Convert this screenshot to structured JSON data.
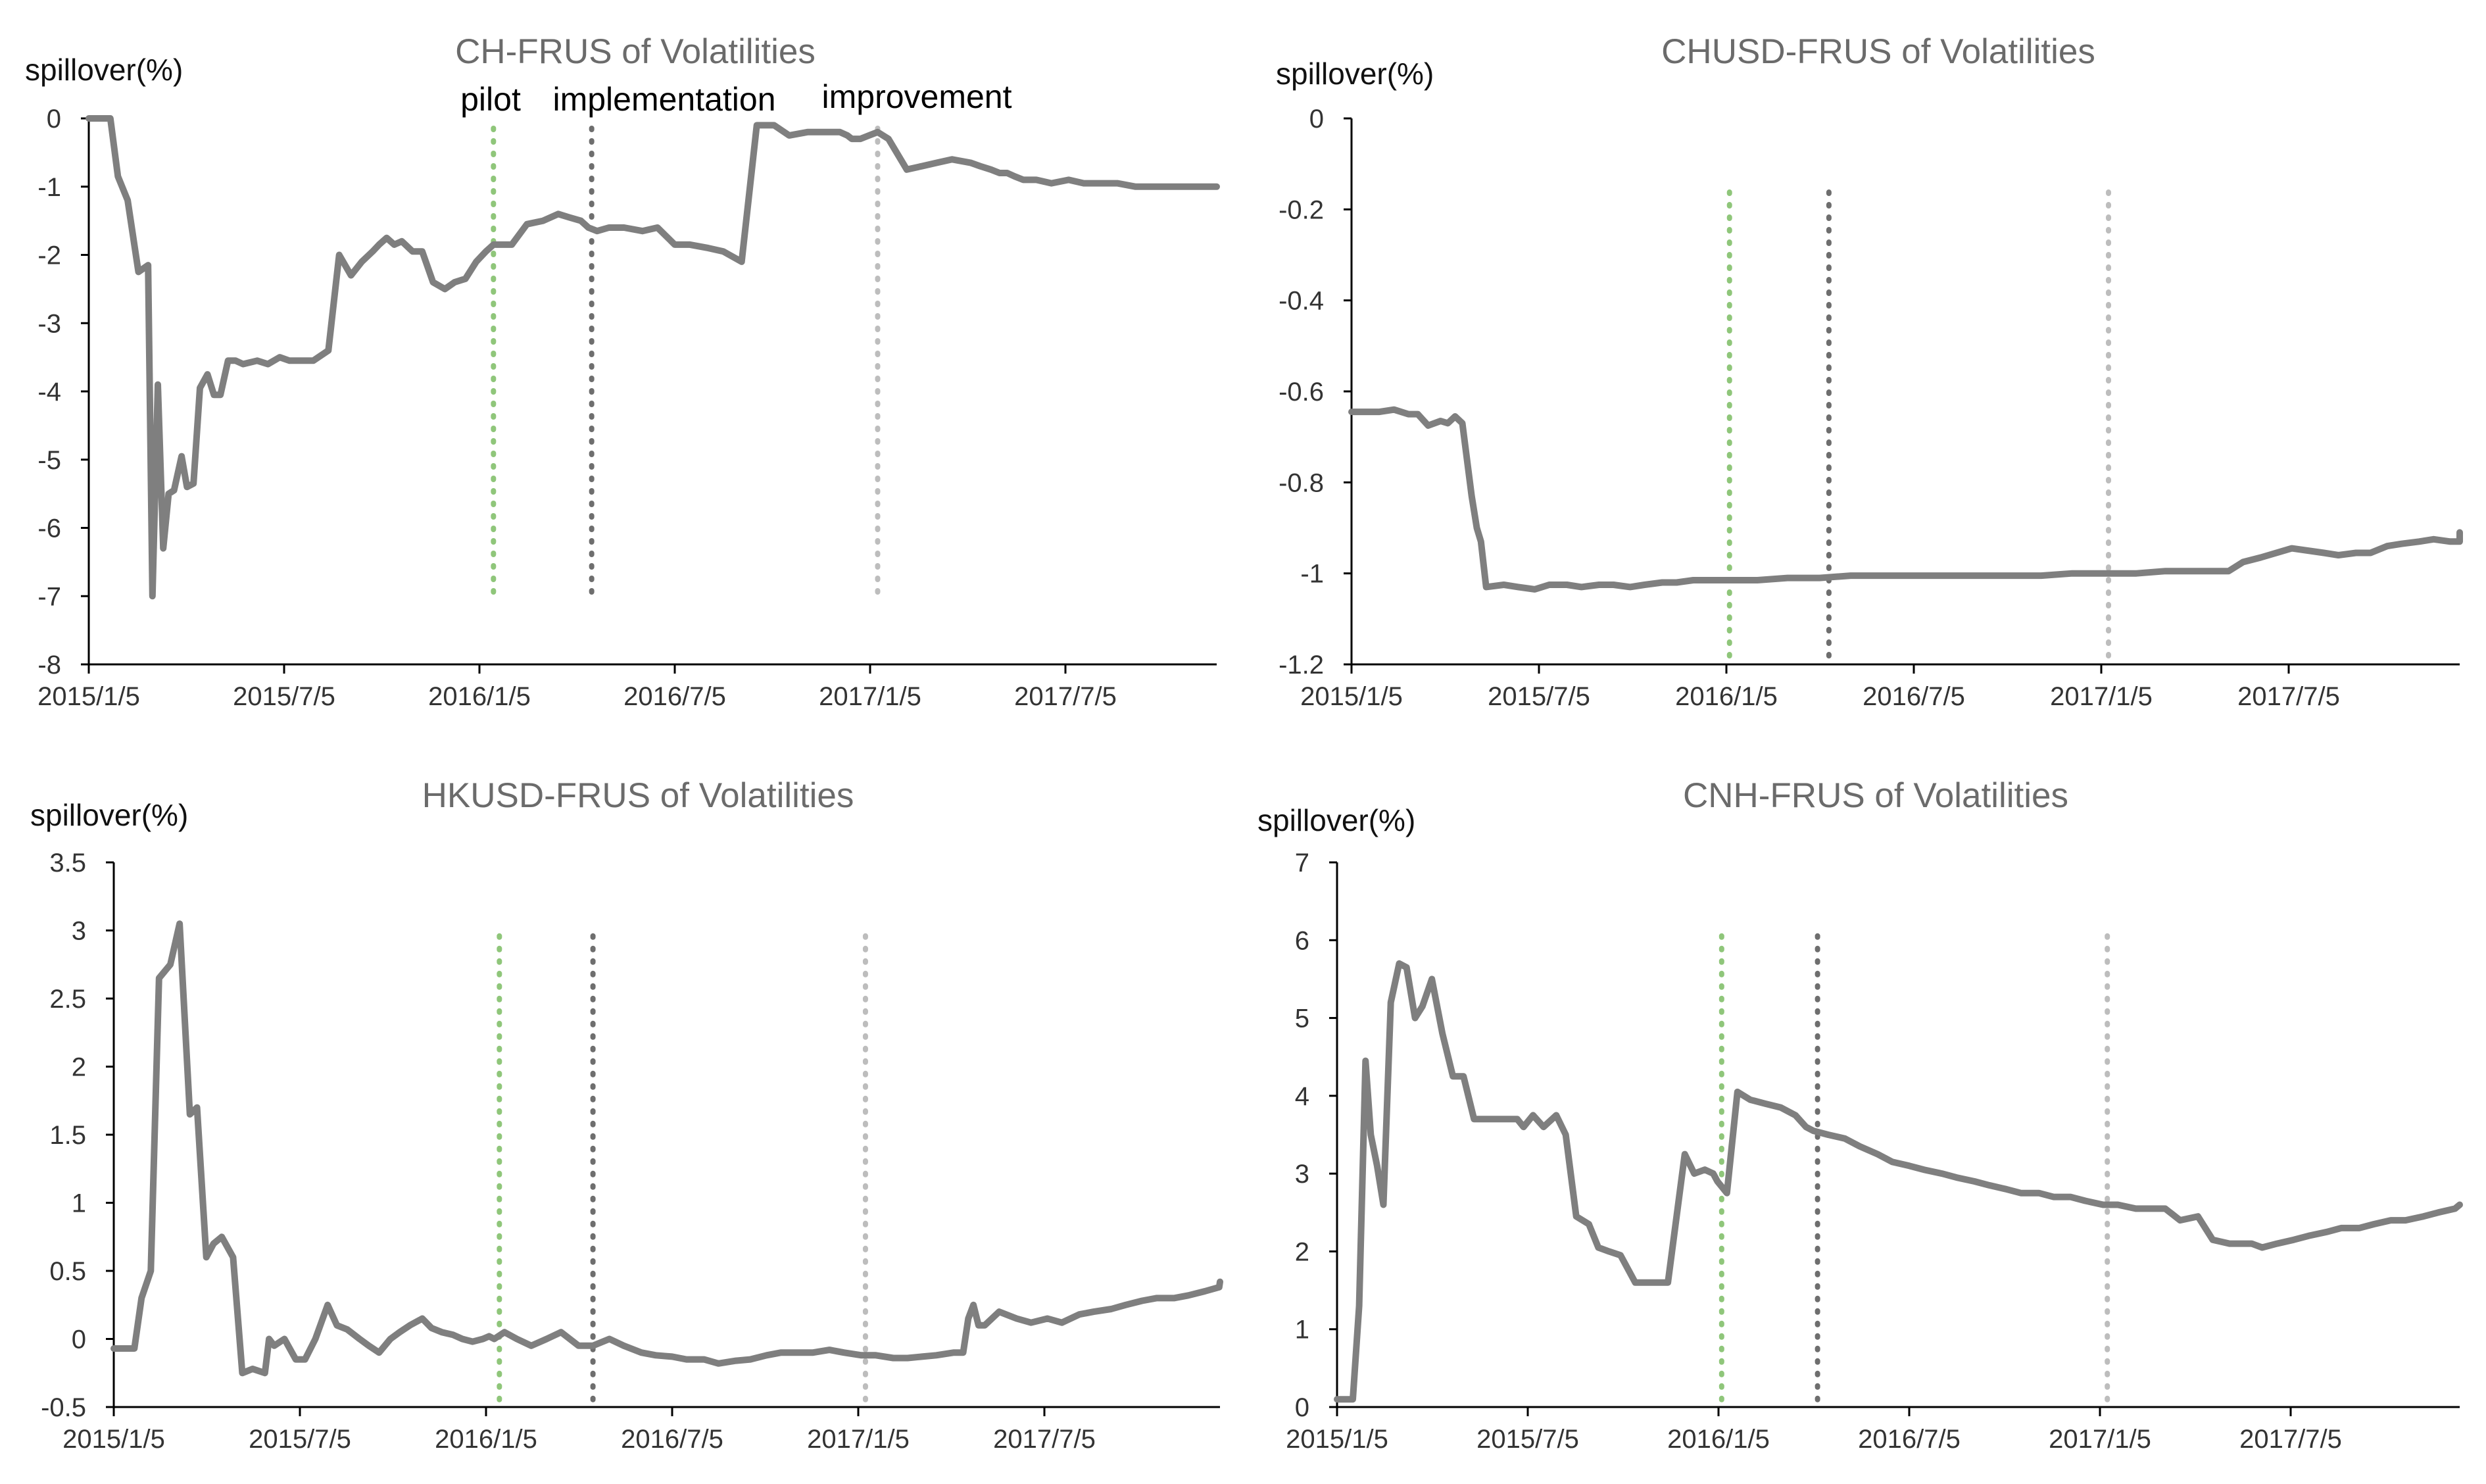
{
  "chart_data": [
    {
      "type": "line",
      "title": "CH-FRUS of Volatilities",
      "ylabel": "spillover(%)",
      "xlabel": "",
      "x_tick_labels": [
        "2015/1/5",
        "2015/7/5",
        "2016/1/5",
        "2016/7/5",
        "2017/1/5",
        "2017/7/5"
      ],
      "y_ticks": [
        "0",
        "-1",
        "-2",
        "-3",
        "-4",
        "-5",
        "-6",
        "-7",
        "-8"
      ],
      "ylim": [
        -8,
        0
      ],
      "xlim": [
        "2015-01-05",
        "2017-12-29"
      ],
      "grid": false,
      "event_lines": [
        {
          "date": "2016-01-15",
          "label": "pilot",
          "color": "#8fc67a"
        },
        {
          "date": "2016-04-15",
          "label": "implementation",
          "color": "#6e6e6e"
        },
        {
          "date": "2017-01-05",
          "label": "improvement",
          "color": "#bdbdbd"
        }
      ],
      "x": [
        "2015-01-05",
        "2015-01-15",
        "2015-01-25",
        "2015-02-01",
        "2015-02-10",
        "2015-02-20",
        "2015-03-01",
        "2015-03-05",
        "2015-03-10",
        "2015-03-15",
        "2015-03-20",
        "2015-03-25",
        "2015-04-01",
        "2015-04-06",
        "2015-04-12",
        "2015-04-18",
        "2015-04-25",
        "2015-05-01",
        "2015-05-07",
        "2015-05-14",
        "2015-05-21",
        "2015-05-28",
        "2015-06-10",
        "2015-06-20",
        "2015-07-01",
        "2015-07-10",
        "2015-07-20",
        "2015-08-01",
        "2015-08-15",
        "2015-08-25",
        "2015-09-05",
        "2015-09-15",
        "2015-09-25",
        "2015-10-01",
        "2015-10-08",
        "2015-10-15",
        "2015-10-22",
        "2015-11-01",
        "2015-11-10",
        "2015-11-20",
        "2015-12-01",
        "2015-12-10",
        "2015-12-20",
        "2015-12-30",
        "2016-01-08",
        "2016-01-15",
        "2016-01-22",
        "2016-02-01",
        "2016-02-15",
        "2016-03-01",
        "2016-03-15",
        "2016-03-25",
        "2016-04-05",
        "2016-04-12",
        "2016-04-20",
        "2016-05-01",
        "2016-05-15",
        "2016-06-01",
        "2016-06-15",
        "2016-07-01",
        "2016-07-15",
        "2016-08-01",
        "2016-08-15",
        "2016-09-01",
        "2016-09-15",
        "2016-10-01",
        "2016-10-15",
        "2016-11-01",
        "2016-11-15",
        "2016-12-01",
        "2016-12-08",
        "2016-12-12",
        "2016-12-20",
        "2016-12-28",
        "2017-01-05",
        "2017-01-15",
        "2017-02-01",
        "2017-02-15",
        "2017-03-01",
        "2017-03-15",
        "2017-04-01",
        "2017-04-10",
        "2017-04-20",
        "2017-04-28",
        "2017-05-05",
        "2017-05-12",
        "2017-05-20",
        "2017-06-01",
        "2017-06-15",
        "2017-07-01",
        "2017-07-15",
        "2017-08-01",
        "2017-08-15",
        "2017-09-01",
        "2017-09-15",
        "2017-10-01",
        "2017-10-15",
        "2017-11-01",
        "2017-11-15",
        "2017-12-01",
        "2017-12-15",
        "2017-12-29"
      ],
      "y": [
        0,
        0,
        0,
        -0.85,
        -1.2,
        -2.25,
        -2.15,
        -7.0,
        -3.9,
        -6.3,
        -5.5,
        -5.45,
        -4.95,
        -5.4,
        -5.35,
        -3.95,
        -3.75,
        -4.05,
        -4.05,
        -3.55,
        -3.55,
        -3.6,
        -3.55,
        -3.6,
        -3.5,
        -3.55,
        -3.55,
        -3.55,
        -3.4,
        -2.0,
        -2.3,
        -2.1,
        -1.95,
        -1.85,
        -1.75,
        -1.85,
        -1.8,
        -1.95,
        -1.95,
        -2.4,
        -2.5,
        -2.4,
        -2.35,
        -2.1,
        -1.95,
        -1.85,
        -1.85,
        -1.85,
        -1.55,
        -1.5,
        -1.4,
        -1.45,
        -1.5,
        -1.6,
        -1.65,
        -1.6,
        -1.6,
        -1.65,
        -1.6,
        -1.85,
        -1.85,
        -1.9,
        -1.95,
        -2.1,
        -0.1,
        -0.1,
        -0.25,
        -0.2,
        -0.2,
        -0.2,
        -0.25,
        -0.3,
        -0.3,
        -0.25,
        -0.2,
        -0.3,
        -0.75,
        -0.7,
        -0.65,
        -0.6,
        -0.65,
        -0.7,
        -0.75,
        -0.8,
        -0.8,
        -0.85,
        -0.9,
        -0.9,
        -0.95,
        -0.9,
        -0.95,
        -0.95,
        -0.95,
        -1.0,
        -1.0,
        -1.0,
        -1.0,
        -1.0,
        -1.0,
        -1.0,
        -1.0,
        -1.0
      ]
    },
    {
      "type": "line",
      "title": "CHUSD-FRUS of Volatilities",
      "ylabel": "spillover(%)",
      "xlabel": "",
      "x_tick_labels": [
        "2015/1/5",
        "2015/7/5",
        "2016/1/5",
        "2016/7/5",
        "2017/1/5",
        "2017/7/5"
      ],
      "y_ticks": [
        "0",
        "-0.2",
        "-0.4",
        "-0.6",
        "-0.8",
        "-1",
        "-1.2"
      ],
      "ylim": [
        -1.2,
        0
      ],
      "xlim": [
        "2015-01-05",
        "2017-12-29"
      ],
      "grid": false,
      "event_lines": [
        {
          "date": "2016-01-05",
          "color": "#8fc67a"
        },
        {
          "date": "2016-04-10",
          "color": "#6e6e6e"
        },
        {
          "date": "2017-01-05",
          "color": "#bdbdbd"
        }
      ],
      "x": [
        "2015-01-05",
        "2015-02-01",
        "2015-02-15",
        "2015-03-01",
        "2015-03-10",
        "2015-03-20",
        "2015-04-01",
        "2015-04-08",
        "2015-04-15",
        "2015-04-22",
        "2015-05-01",
        "2015-05-06",
        "2015-05-10",
        "2015-05-15",
        "2015-06-01",
        "2015-06-15",
        "2015-07-01",
        "2015-07-15",
        "2015-08-01",
        "2015-08-15",
        "2015-09-01",
        "2015-09-15",
        "2015-10-01",
        "2015-10-15",
        "2015-11-01",
        "2015-11-15",
        "2015-12-01",
        "2016-01-01",
        "2016-02-01",
        "2016-03-01",
        "2016-04-01",
        "2016-05-01",
        "2016-06-01",
        "2016-07-01",
        "2016-08-01",
        "2016-09-01",
        "2016-10-01",
        "2016-11-01",
        "2016-12-01",
        "2017-01-01",
        "2017-02-01",
        "2017-03-01",
        "2017-04-01",
        "2017-04-15",
        "2017-05-01",
        "2017-05-15",
        "2017-06-01",
        "2017-07-01",
        "2017-08-01",
        "2017-08-15",
        "2017-09-01",
        "2017-09-15",
        "2017-10-01",
        "2017-10-15",
        "2017-11-01",
        "2017-11-15",
        "2017-12-01",
        "2017-12-15",
        "2017-12-29"
      ],
      "y": [
        -0.645,
        -0.645,
        -0.64,
        -0.65,
        -0.65,
        -0.675,
        -0.665,
        -0.67,
        -0.655,
        -0.67,
        -0.83,
        -0.9,
        -0.93,
        -1.03,
        -1.025,
        -1.03,
        -1.035,
        -1.025,
        -1.025,
        -1.03,
        -1.025,
        -1.025,
        -1.03,
        -1.025,
        -1.02,
        -1.02,
        -1.015,
        -1.015,
        -1.015,
        -1.01,
        -1.01,
        -1.005,
        -1.005,
        -1.005,
        -1.005,
        -1.005,
        -1.005,
        -1.005,
        -1.0,
        -1.0,
        -1.0,
        -0.995,
        -0.995,
        -0.995,
        -0.995,
        -0.975,
        -0.965,
        -0.945,
        -0.955,
        -0.96,
        -0.955,
        -0.955,
        -0.94,
        -0.935,
        -0.93,
        -0.925,
        -0.93,
        -0.93,
        -0.91
      ]
    },
    {
      "type": "line",
      "title": "HKUSD-FRUS of Volatilities",
      "ylabel": "spillover(%)",
      "xlabel": "",
      "x_tick_labels": [
        "2015/1/5",
        "2015/7/5",
        "2016/1/5",
        "2016/7/5",
        "2017/1/5",
        "2017/7/5"
      ],
      "y_ticks": [
        "3.5",
        "3",
        "2.5",
        "2",
        "1.5",
        "1",
        "0.5",
        "0",
        "-0.5"
      ],
      "ylim": [
        -0.5,
        3.5
      ],
      "xlim": [
        "2015-01-05",
        "2017-12-29"
      ],
      "grid": false,
      "event_lines": [
        {
          "date": "2016-01-15",
          "color": "#8fc67a"
        },
        {
          "date": "2016-04-15",
          "color": "#6e6e6e"
        },
        {
          "date": "2017-01-05",
          "color": "#bdbdbd"
        }
      ],
      "x": [
        "2015-01-05",
        "2015-01-25",
        "2015-02-01",
        "2015-02-10",
        "2015-02-18",
        "2015-03-01",
        "2015-03-10",
        "2015-03-20",
        "2015-03-27",
        "2015-04-05",
        "2015-04-12",
        "2015-04-20",
        "2015-05-01",
        "2015-05-10",
        "2015-05-20",
        "2015-06-01",
        "2015-06-05",
        "2015-06-10",
        "2015-06-20",
        "2015-07-01",
        "2015-07-10",
        "2015-07-20",
        "2015-08-01",
        "2015-08-10",
        "2015-08-20",
        "2015-09-01",
        "2015-09-10",
        "2015-09-20",
        "2015-10-01",
        "2015-10-10",
        "2015-10-20",
        "2015-11-01",
        "2015-11-10",
        "2015-11-20",
        "2015-12-01",
        "2015-12-10",
        "2015-12-20",
        "2015-12-30",
        "2016-01-05",
        "2016-01-10",
        "2016-01-20",
        "2016-02-01",
        "2016-02-15",
        "2016-03-01",
        "2016-03-15",
        "2016-04-01",
        "2016-04-15",
        "2016-05-01",
        "2016-05-15",
        "2016-06-01",
        "2016-06-15",
        "2016-07-01",
        "2016-07-15",
        "2016-08-01",
        "2016-08-15",
        "2016-09-01",
        "2016-09-15",
        "2016-10-01",
        "2016-10-15",
        "2016-11-01",
        "2016-11-15",
        "2016-12-01",
        "2016-12-15",
        "2017-01-01",
        "2017-01-15",
        "2017-02-01",
        "2017-02-15",
        "2017-03-01",
        "2017-03-15",
        "2017-04-01",
        "2017-04-10",
        "2017-04-15",
        "2017-04-20",
        "2017-04-25",
        "2017-05-01",
        "2017-05-15",
        "2017-06-01",
        "2017-06-15",
        "2017-07-01",
        "2017-07-15",
        "2017-08-01",
        "2017-08-15",
        "2017-09-01",
        "2017-09-15",
        "2017-10-01",
        "2017-10-15",
        "2017-11-01",
        "2017-11-15",
        "2017-12-01",
        "2017-12-15",
        "2017-12-29"
      ],
      "y": [
        -0.07,
        -0.07,
        0.3,
        0.5,
        2.65,
        2.75,
        3.05,
        1.65,
        1.7,
        0.6,
        0.7,
        0.75,
        0.6,
        -0.25,
        -0.22,
        -0.25,
        0.0,
        -0.05,
        0.0,
        -0.15,
        -0.15,
        0.0,
        0.25,
        0.1,
        0.07,
        0.0,
        -0.05,
        -0.1,
        0.0,
        0.05,
        0.1,
        0.15,
        0.08,
        0.05,
        0.03,
        0.0,
        -0.02,
        0.0,
        0.02,
        0.0,
        0.05,
        0.0,
        -0.05,
        0.0,
        0.05,
        -0.05,
        -0.05,
        0.0,
        -0.05,
        -0.1,
        -0.12,
        -0.13,
        -0.15,
        -0.15,
        -0.18,
        -0.16,
        -0.15,
        -0.12,
        -0.1,
        -0.1,
        -0.1,
        -0.08,
        -0.1,
        -0.12,
        -0.12,
        -0.14,
        -0.14,
        -0.13,
        -0.12,
        -0.1,
        -0.1,
        0.15,
        0.25,
        0.1,
        0.1,
        0.2,
        0.15,
        0.12,
        0.15,
        0.12,
        0.18,
        0.2,
        0.22,
        0.25,
        0.28,
        0.3,
        0.3,
        0.32,
        0.35,
        0.38,
        0.42
      ]
    },
    {
      "type": "line",
      "title": "CNH-FRUS of Volatilities",
      "ylabel": "spillover(%)",
      "xlabel": "",
      "x_tick_labels": [
        "2015/1/5",
        "2015/7/5",
        "2016/1/5",
        "2016/7/5",
        "2017/1/5",
        "2017/7/5"
      ],
      "y_ticks": [
        "7",
        "6",
        "5",
        "4",
        "3",
        "2",
        "1",
        "0"
      ],
      "ylim": [
        0,
        7
      ],
      "xlim": [
        "2015-01-05",
        "2017-12-29"
      ],
      "grid": false,
      "event_lines": [
        {
          "date": "2016-01-05",
          "color": "#8fc67a"
        },
        {
          "date": "2016-04-05",
          "color": "#6e6e6e"
        },
        {
          "date": "2017-01-05",
          "color": "#bdbdbd"
        }
      ],
      "x": [
        "2015-01-05",
        "2015-01-20",
        "2015-01-26",
        "2015-02-01",
        "2015-02-06",
        "2015-02-12",
        "2015-02-18",
        "2015-02-25",
        "2015-03-05",
        "2015-03-12",
        "2015-03-20",
        "2015-03-27",
        "2015-04-05",
        "2015-04-15",
        "2015-04-25",
        "2015-05-05",
        "2015-05-15",
        "2015-05-25",
        "2015-06-05",
        "2015-06-15",
        "2015-06-25",
        "2015-07-01",
        "2015-07-10",
        "2015-07-20",
        "2015-08-01",
        "2015-08-10",
        "2015-08-20",
        "2015-09-01",
        "2015-09-10",
        "2015-09-20",
        "2015-10-01",
        "2015-10-15",
        "2015-11-01",
        "2015-11-15",
        "2015-12-01",
        "2015-12-10",
        "2015-12-20",
        "2015-12-28",
        "2016-01-01",
        "2016-01-10",
        "2016-01-20",
        "2016-02-01",
        "2016-02-15",
        "2016-03-01",
        "2016-03-15",
        "2016-03-25",
        "2016-04-01",
        "2016-04-15",
        "2016-05-01",
        "2016-05-15",
        "2016-06-01",
        "2016-06-15",
        "2016-07-01",
        "2016-07-15",
        "2016-08-01",
        "2016-08-15",
        "2016-09-01",
        "2016-09-15",
        "2016-10-01",
        "2016-10-15",
        "2016-11-01",
        "2016-11-15",
        "2016-12-01",
        "2016-12-15",
        "2017-01-01",
        "2017-01-15",
        "2017-02-01",
        "2017-02-15",
        "2017-03-01",
        "2017-03-15",
        "2017-04-01",
        "2017-04-15",
        "2017-05-01",
        "2017-05-15",
        "2017-05-22",
        "2017-06-01",
        "2017-06-15",
        "2017-07-01",
        "2017-07-15",
        "2017-08-01",
        "2017-08-15",
        "2017-09-01",
        "2017-09-15",
        "2017-10-01",
        "2017-10-15",
        "2017-11-01",
        "2017-11-15",
        "2017-12-01",
        "2017-12-15",
        "2017-12-29"
      ],
      "y": [
        0.1,
        0.1,
        1.3,
        4.45,
        3.5,
        3.1,
        2.6,
        5.2,
        5.7,
        5.65,
        5.0,
        5.15,
        5.5,
        4.8,
        4.25,
        4.25,
        3.7,
        3.7,
        3.7,
        3.7,
        3.7,
        3.6,
        3.75,
        3.6,
        3.75,
        3.5,
        2.45,
        2.35,
        2.05,
        2.0,
        1.95,
        1.6,
        1.6,
        1.6,
        3.25,
        3.0,
        3.05,
        3.0,
        2.9,
        2.75,
        4.05,
        3.95,
        3.9,
        3.85,
        3.75,
        3.6,
        3.55,
        3.5,
        3.45,
        3.35,
        3.25,
        3.15,
        3.1,
        3.05,
        3.0,
        2.95,
        2.9,
        2.85,
        2.8,
        2.75,
        2.75,
        2.7,
        2.7,
        2.65,
        2.6,
        2.6,
        2.55,
        2.55,
        2.55,
        2.4,
        2.45,
        2.15,
        2.1,
        2.1,
        2.1,
        2.05,
        2.1,
        2.15,
        2.2,
        2.25,
        2.3,
        2.3,
        2.35,
        2.4,
        2.4,
        2.45,
        2.5,
        2.55,
        2.6,
        2.6
      ]
    }
  ],
  "colors": {
    "series": "#7f7f7f",
    "axis": "#000000",
    "title": "#6b6b6b"
  }
}
